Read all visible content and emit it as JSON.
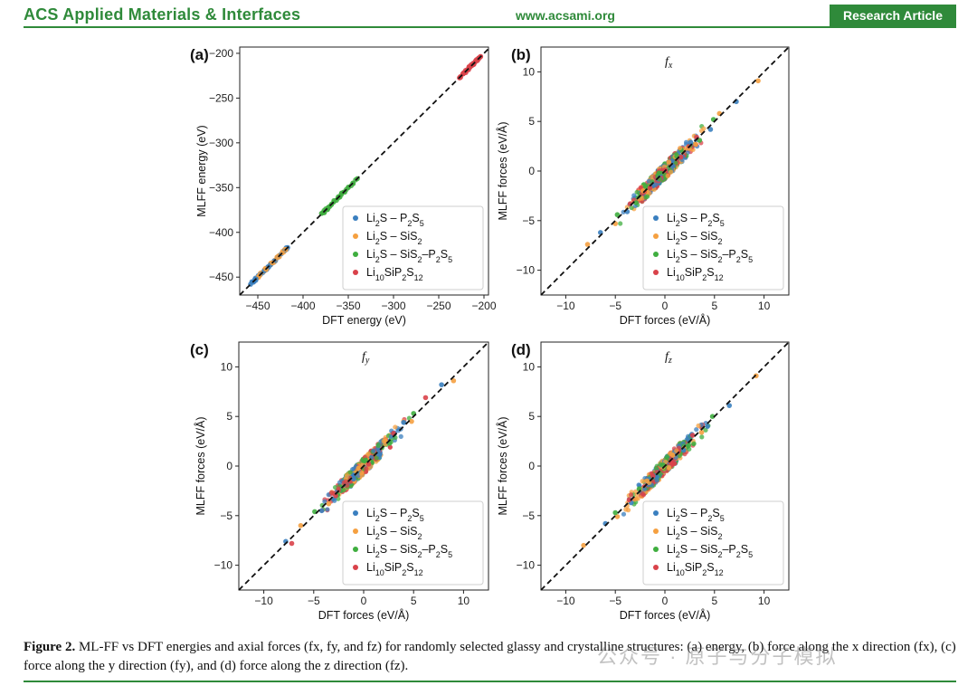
{
  "header": {
    "journal": "ACS Applied Materials & Interfaces",
    "url": "www.acsami.org",
    "badge": "Research Article"
  },
  "colors": {
    "brand": "#2f8a3a",
    "Li2S-P2S5": "#3a7fbf",
    "Li2S-SiS2": "#f5a040",
    "Li2S-SiS2-P2S5": "#3fae3f",
    "Li10SiP2S12": "#d9424a"
  },
  "legend": [
    "Li2S – P2S5",
    "Li2S – SiS2",
    "Li2S – SiS2–P2S5",
    "Li10SiP2S12"
  ],
  "chart_data": [
    {
      "panel": "(a)",
      "type": "scatter",
      "title": "",
      "xlabel": "DFT energy (eV)",
      "ylabel": "MLFF energy (eV)",
      "xlim": [
        -470,
        -195
      ],
      "ylim": [
        -470,
        -193
      ],
      "xticks": [
        -450,
        -400,
        -350,
        -300,
        -250,
        -200
      ],
      "yticks": [
        -450,
        -400,
        -350,
        -300,
        -250,
        -200
      ],
      "series": [
        {
          "name": "Li2S-P2S5",
          "x": [
            -458,
            -452,
            -447,
            -443,
            -439,
            -436,
            -432,
            -428,
            -424,
            -420,
            -417
          ],
          "y": [
            -458,
            -452,
            -447,
            -443,
            -439,
            -436,
            -432,
            -428,
            -424,
            -420,
            -417
          ]
        },
        {
          "name": "Li2S-SiS2",
          "x": [
            -448,
            -441,
            -434,
            -428,
            -423,
            -419
          ],
          "y": [
            -448,
            -441,
            -434,
            -428,
            -423,
            -419
          ]
        },
        {
          "name": "Li2S-SiS2-P2S5",
          "x": [
            -378,
            -372,
            -366,
            -360,
            -355,
            -350,
            -345,
            -340
          ],
          "y": [
            -378,
            -372,
            -366,
            -360,
            -355,
            -350,
            -345,
            -340
          ]
        },
        {
          "name": "Li10SiP2S12",
          "x": [
            -226,
            -222,
            -218,
            -214,
            -210,
            -207,
            -204
          ],
          "y": [
            -226,
            -222,
            -218,
            -214,
            -210,
            -207,
            -204
          ]
        }
      ],
      "reference_line": "y = x"
    },
    {
      "panel": "(b)",
      "type": "scatter",
      "title": "f_x",
      "xlabel": "DFT forces (eV/Å)",
      "ylabel": "MLFF forces (eV/Å)",
      "xlim": [
        -12.5,
        12.5
      ],
      "ylim": [
        -12.5,
        12.5
      ],
      "xticks": [
        -10,
        -5,
        0,
        5,
        10
      ],
      "yticks": [
        -10,
        -5,
        0,
        5,
        10
      ],
      "series": [
        {
          "name": "Li2S-P2S5",
          "x": [
            -6.5,
            -3.8,
            -1.2,
            0.8,
            2.6,
            4.6,
            7.2
          ],
          "y": [
            -6.2,
            -4.1,
            -1.5,
            0.5,
            2.9,
            4.2,
            7.0
          ]
        },
        {
          "name": "Li2S-SiS2",
          "x": [
            -7.8,
            -5.0,
            -2.2,
            0.4,
            3.1,
            5.5,
            9.4
          ],
          "y": [
            -7.4,
            -5.3,
            -2.0,
            0.9,
            2.7,
            5.8,
            9.1
          ]
        },
        {
          "name": "Li2S-SiS2-P2S5",
          "x": [
            -4.8,
            -2.9,
            -0.6,
            1.2,
            3.5,
            4.9
          ],
          "y": [
            -4.4,
            -3.2,
            -0.2,
            1.5,
            3.1,
            5.2
          ]
        },
        {
          "name": "Li10SiP2S12",
          "x": [
            -3.5,
            -1.5,
            0.0,
            1.6,
            3.2
          ],
          "y": [
            -3.3,
            -1.7,
            0.1,
            1.4,
            3.4
          ]
        }
      ],
      "reference_line": "y = x"
    },
    {
      "panel": "(c)",
      "type": "scatter",
      "title": "f_y",
      "xlabel": "DFT forces (eV/Å)",
      "ylabel": "MLFF forces (eV/Å)",
      "xlim": [
        -12.5,
        12.5
      ],
      "ylim": [
        -12.5,
        12.5
      ],
      "xticks": [
        -10,
        -5,
        0,
        5,
        10
      ],
      "yticks": [
        -10,
        -5,
        0,
        5,
        10
      ],
      "series": [
        {
          "name": "Li2S-P2S5",
          "x": [
            -7.8,
            -4.2,
            -1.0,
            1.5,
            4.0,
            7.8
          ],
          "y": [
            -7.6,
            -4.5,
            -1.3,
            1.2,
            4.4,
            8.2
          ]
        },
        {
          "name": "Li2S-SiS2",
          "x": [
            -6.3,
            -3.5,
            -0.5,
            2.2,
            4.8,
            9.0
          ],
          "y": [
            -6.0,
            -3.8,
            -0.2,
            2.5,
            4.5,
            8.6
          ]
        },
        {
          "name": "Li2S-SiS2-P2S5",
          "x": [
            -4.9,
            -2.6,
            0.2,
            2.6,
            5.0
          ],
          "y": [
            -4.6,
            -2.9,
            0.6,
            2.3,
            5.3
          ]
        },
        {
          "name": "Li10SiP2S12",
          "x": [
            -7.2,
            -2.8,
            0.5,
            3.0,
            6.2
          ],
          "y": [
            -7.8,
            -3.0,
            0.2,
            3.3,
            6.9
          ]
        }
      ],
      "reference_line": "y = x"
    },
    {
      "panel": "(d)",
      "type": "scatter",
      "title": "f_z",
      "xlabel": "DFT forces (eV/Å)",
      "ylabel": "MLFF forces (eV/Å)",
      "xlim": [
        -12.5,
        12.5
      ],
      "ylim": [
        -12.5,
        12.5
      ],
      "xticks": [
        -10,
        -5,
        0,
        5,
        10
      ],
      "yticks": [
        -10,
        -5,
        0,
        5,
        10
      ],
      "series": [
        {
          "name": "Li2S-P2S5",
          "x": [
            -6.0,
            -3.4,
            -0.8,
            1.9,
            4.3,
            6.5
          ],
          "y": [
            -5.8,
            -3.7,
            -1.1,
            1.6,
            4.0,
            6.1
          ]
        },
        {
          "name": "Li2S-SiS2",
          "x": [
            -8.2,
            -4.8,
            -1.8,
            0.8,
            3.7,
            9.2
          ],
          "y": [
            -8.0,
            -5.1,
            -1.5,
            1.1,
            3.4,
            9.1
          ]
        },
        {
          "name": "Li2S-SiS2-P2S5",
          "x": [
            -5.0,
            -2.6,
            -0.2,
            2.4,
            4.8
          ],
          "y": [
            -4.7,
            -2.3,
            0.1,
            2.1,
            5.0
          ]
        },
        {
          "name": "Li10SiP2S12",
          "x": [
            -3.6,
            -1.2,
            0.6,
            2.8
          ],
          "y": [
            -3.4,
            -1.0,
            0.4,
            3.1
          ]
        }
      ],
      "reference_line": "y = x"
    }
  ],
  "caption": {
    "label": "Figure 2.",
    "text": "ML-FF vs DFT energies and axial forces (fx, fy, and fz) for randomly selected glassy and crystalline structures: (a) energy, (b) force along the x direction (fx), (c) force along the y direction (fy), and (d) force along the z direction (fz)."
  },
  "watermark": "公众号 · 原子与分子模拟"
}
